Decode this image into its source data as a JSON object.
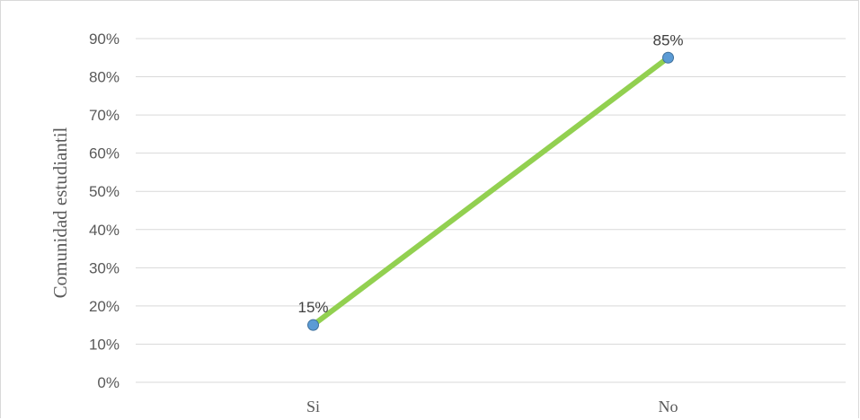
{
  "chart_data": {
    "type": "line",
    "categories": [
      "Si",
      "No"
    ],
    "series": [
      {
        "values": [
          0.15,
          0.85
        ],
        "data_labels": [
          "15%",
          "85%"
        ]
      }
    ],
    "title": "",
    "xlabel": "",
    "ylabel": "Comunidad estudiantil",
    "ylim": [
      0,
      0.9
    ],
    "yticks": [
      0,
      0.1,
      0.2,
      0.3,
      0.4,
      0.5,
      0.6,
      0.7,
      0.8,
      0.9
    ],
    "ytick_labels": [
      "0%",
      "10%",
      "20%",
      "30%",
      "40%",
      "50%",
      "60%",
      "70%",
      "80%",
      "90%"
    ],
    "grid": true,
    "legend": "none",
    "colors": {
      "line": "#92d050",
      "marker_fill": "#5b9bd5",
      "marker_edge": "#41719c",
      "grid": "#d9d9d9"
    }
  }
}
